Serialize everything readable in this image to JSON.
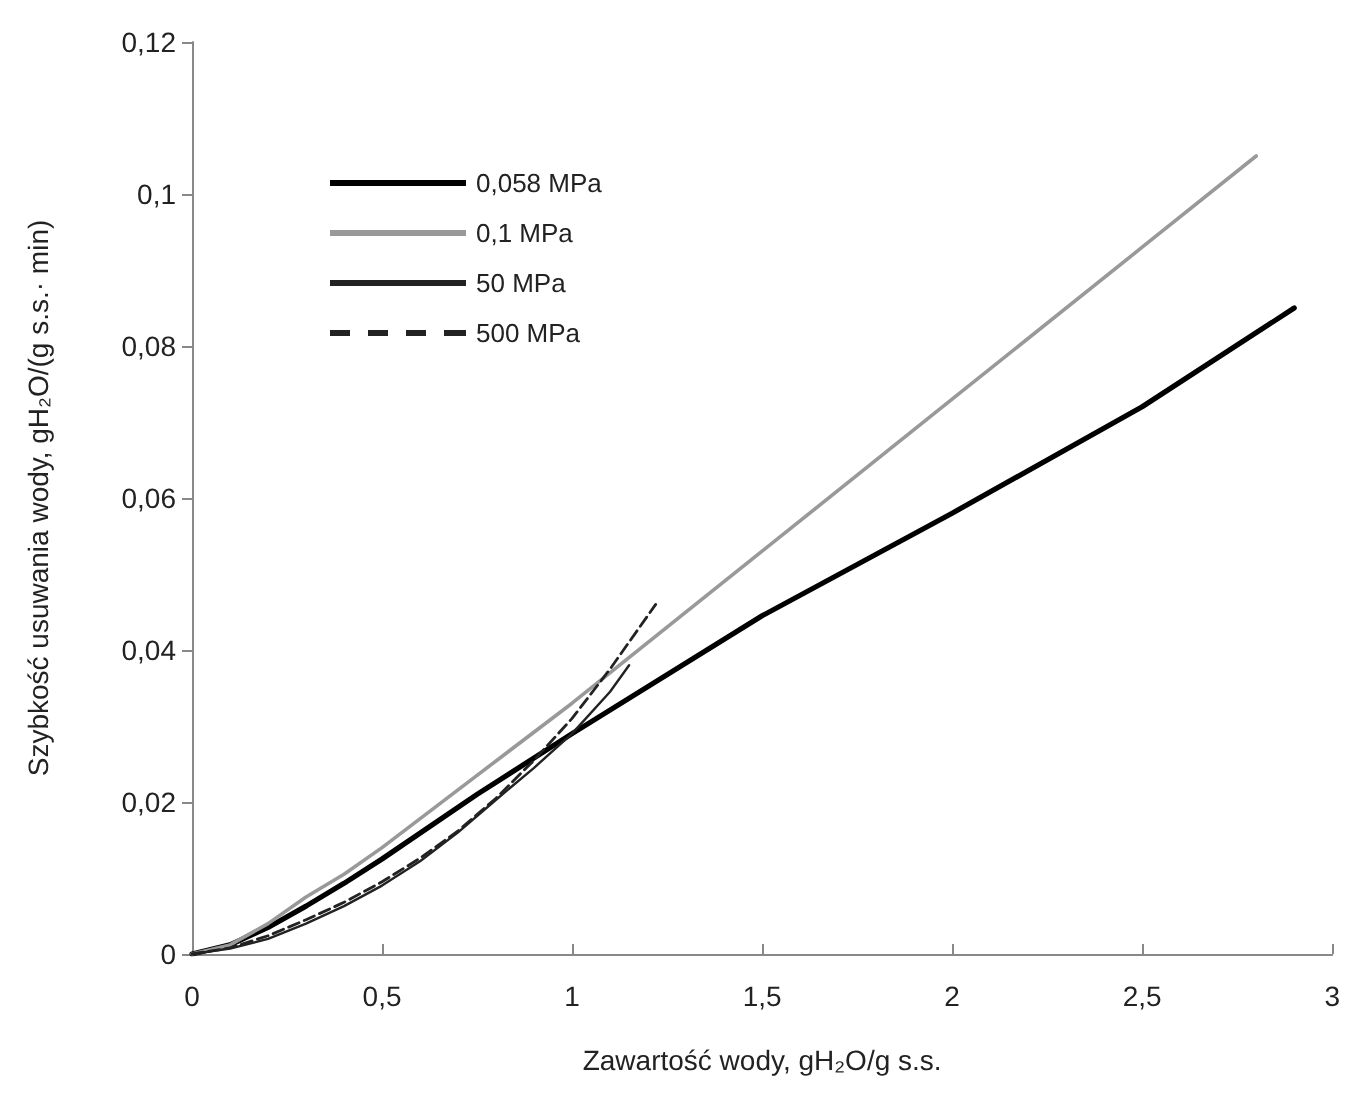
{
  "chart_data": {
    "type": "line",
    "xlabel": "Zawartość wody, gH₂O/g s.s.",
    "ylabel": "Szybkość usuwania wody, gH₂O/(g s.s.· min)",
    "xlim": [
      0,
      3
    ],
    "xticks": [
      {
        "value": 0,
        "label": "0"
      },
      {
        "value": 0.5,
        "label": "0,5"
      },
      {
        "value": 1,
        "label": "1"
      },
      {
        "value": 1.5,
        "label": "1,5"
      },
      {
        "value": 2,
        "label": "2"
      },
      {
        "value": 2.5,
        "label": "2,5"
      },
      {
        "value": 3,
        "label": "3"
      }
    ],
    "ylim": [
      0,
      0.12
    ],
    "yticks": [
      {
        "value": 0,
        "label": "0"
      },
      {
        "value": 0.02,
        "label": "0,02"
      },
      {
        "value": 0.04,
        "label": "0,04"
      },
      {
        "value": 0.06,
        "label": "0,06"
      },
      {
        "value": 0.08,
        "label": "0,08"
      },
      {
        "value": 0.1,
        "label": "0,1"
      },
      {
        "value": 0.12,
        "label": "0,12"
      }
    ],
    "grid": false,
    "legend": "top left",
    "marker": "none",
    "series": [
      {
        "name": "0,058 MPa",
        "color": "#000000",
        "line_style": "solid",
        "x": [
          0,
          0.1,
          0.2,
          0.3,
          0.4,
          0.5,
          0.75,
          1,
          1.5,
          2,
          2.5,
          2.9
        ],
        "values": [
          0,
          0.0012,
          0.0035,
          0.0063,
          0.0093,
          0.0125,
          0.021,
          0.029,
          0.0445,
          0.058,
          0.072,
          0.085
        ]
      },
      {
        "name": "0,1 MPa",
        "color": "#999999",
        "line_style": "solid",
        "x": [
          0,
          0.1,
          0.2,
          0.3,
          0.4,
          0.5,
          0.75,
          1,
          1.5,
          2,
          2.5,
          2.8
        ],
        "values": [
          0,
          0.0012,
          0.004,
          0.0075,
          0.0105,
          0.014,
          0.0235,
          0.033,
          0.053,
          0.073,
          0.093,
          0.105
        ]
      },
      {
        "name": "50 MPa",
        "color": "#222222",
        "line_style": "solid",
        "x": [
          0,
          0.1,
          0.2,
          0.3,
          0.4,
          0.5,
          0.6,
          0.7,
          0.8,
          0.9,
          1,
          1.1,
          1.15
        ],
        "values": [
          0,
          0.0007,
          0.002,
          0.004,
          0.0063,
          0.009,
          0.0122,
          0.016,
          0.0203,
          0.0245,
          0.029,
          0.0345,
          0.038
        ]
      },
      {
        "name": "500 MPa",
        "color": "#222222",
        "line_style": "dashed",
        "x": [
          0,
          0.1,
          0.2,
          0.3,
          0.4,
          0.5,
          0.6,
          0.7,
          0.8,
          0.9,
          1,
          1.1,
          1.22
        ],
        "values": [
          0,
          0.0008,
          0.0024,
          0.0045,
          0.0068,
          0.0095,
          0.0126,
          0.0162,
          0.0205,
          0.0255,
          0.031,
          0.0375,
          0.046
        ]
      }
    ]
  }
}
